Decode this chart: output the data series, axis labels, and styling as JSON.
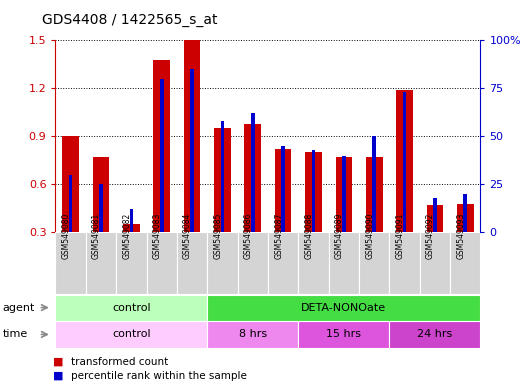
{
  "title": "GDS4408 / 1422565_s_at",
  "samples": [
    "GSM549080",
    "GSM549081",
    "GSM549082",
    "GSM549083",
    "GSM549084",
    "GSM549085",
    "GSM549086",
    "GSM549087",
    "GSM549088",
    "GSM549089",
    "GSM549090",
    "GSM549091",
    "GSM549092",
    "GSM549093"
  ],
  "transformed_count": [
    0.9,
    0.77,
    0.35,
    1.38,
    1.5,
    0.95,
    0.98,
    0.82,
    0.8,
    0.77,
    0.77,
    1.19,
    0.47,
    0.48
  ],
  "percentile_rank": [
    30,
    25,
    12,
    80,
    85,
    58,
    62,
    45,
    43,
    40,
    50,
    73,
    18,
    20
  ],
  "bar_color": "#cc0000",
  "pct_color": "#0000cc",
  "ylim_left": [
    0.3,
    1.5
  ],
  "ylim_right": [
    0,
    100
  ],
  "yticks_left": [
    0.3,
    0.6,
    0.9,
    1.2,
    1.5
  ],
  "yticks_right": [
    0,
    25,
    50,
    75,
    100
  ],
  "yticklabels_right": [
    "0",
    "25",
    "50",
    "75",
    "100%"
  ],
  "agent_groups": [
    {
      "label": "control",
      "start": 0,
      "end": 5,
      "color": "#bbffbb"
    },
    {
      "label": "DETA-NONOate",
      "start": 5,
      "end": 14,
      "color": "#44dd44"
    }
  ],
  "time_groups": [
    {
      "label": "control",
      "start": 0,
      "end": 5,
      "color": "#ffccff"
    },
    {
      "label": "8 hrs",
      "start": 5,
      "end": 8,
      "color": "#ee88ee"
    },
    {
      "label": "15 hrs",
      "start": 8,
      "end": 11,
      "color": "#dd44dd"
    },
    {
      "label": "24 hrs",
      "start": 11,
      "end": 14,
      "color": "#cc44cc"
    }
  ],
  "legend_bar_label": "transformed count",
  "legend_pct_label": "percentile rank within the sample",
  "tick_color_left": "#cc0000",
  "tick_color_right": "#0000cc",
  "bg_color": "#ffffff"
}
